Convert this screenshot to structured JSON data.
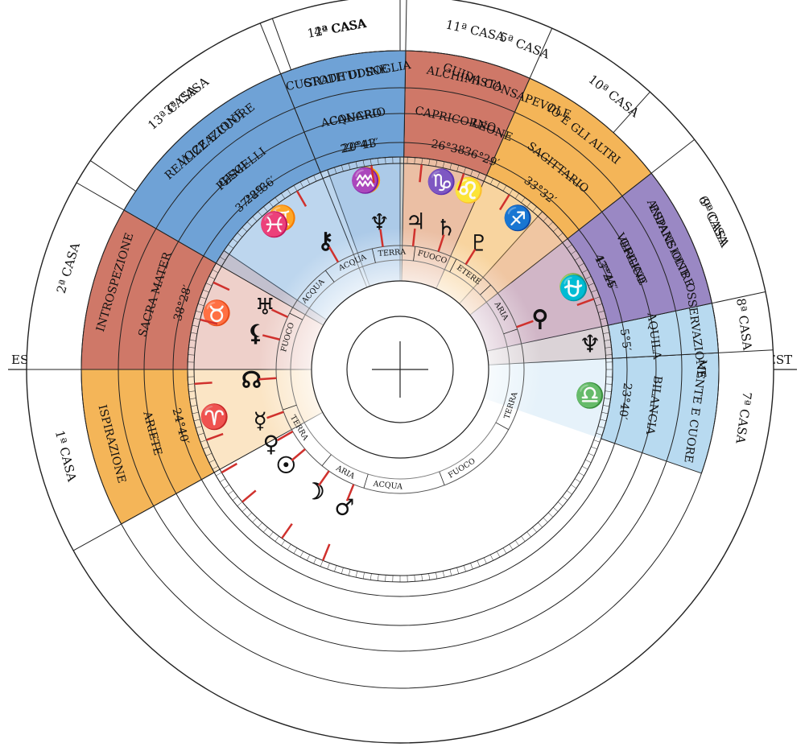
{
  "directions": {
    "east": "EST",
    "west": "OVEST"
  },
  "houses": [
    {
      "label": "1ª CASA",
      "theme": "ISPIRAZIONE",
      "sign": "ARIETE",
      "degree": "24°40′",
      "sign_icon": "aries-icon",
      "glyph": "♈",
      "color": "#f4b558"
    },
    {
      "label": "2ª CASA",
      "theme": "INTROSPEZIONE",
      "sign": "SACRA MATER",
      "degree": "38°28′",
      "sign_icon": "taurus-icon",
      "glyph": "♉",
      "color": "#cf7868"
    },
    {
      "label": "3ª CASA",
      "theme": "VOCE E CUORE",
      "sign": "GEMELLI",
      "degree": "28°36′",
      "sign_icon": "gemini-icon",
      "glyph": "♊",
      "color": "#b8daf0"
    },
    {
      "label": "4ª CASA",
      "theme": "CUSTODE DI SOGLIA",
      "sign": "CANCRO",
      "degree": "20°43′",
      "sign_icon": "cancer-icon",
      "glyph": "♋",
      "color": "#6fa2d6"
    },
    {
      "label": "5ª CASA",
      "theme": "GUIDA CONSAPEVOLE",
      "sign": "LEONE",
      "degree": "36°29′",
      "sign_icon": "leo-icon",
      "glyph": "♌",
      "color": "#f4b558"
    },
    {
      "label": "6ª CASA",
      "theme": "ESPANSIONE",
      "sign": "VERGINE",
      "degree": "43°24′",
      "sign_icon": "virgo-icon",
      "glyph": "♍",
      "color": "#cf7868"
    },
    {
      "label": "7ª CASA",
      "theme": "MENTE E CUORE",
      "sign": "BILANCIA",
      "degree": "23°40′",
      "sign_icon": "libra-icon",
      "glyph": "♎",
      "color": "#b8daf0"
    },
    {
      "label": "8ª CASA",
      "theme": "OSSERVAZIONE",
      "sign": "AQUILA",
      "degree": "5°5′",
      "sign_icon": "eagle-icon",
      "glyph": "♆",
      "color": "#b8daf0"
    },
    {
      "label": "9ª CASA",
      "theme": "ANDARE OLTRE",
      "sign": "OFIUCO",
      "degree": "17°45′",
      "sign_icon": "ophiuchus-icon",
      "glyph": "⛎",
      "color": "#9a88c4"
    },
    {
      "label": "10ª CASA",
      "theme": "IO E GLI ALTRI",
      "sign": "SAGITTARIO",
      "degree": "33°32′",
      "sign_icon": "sagittarius-icon",
      "glyph": "♐",
      "color": "#f4b558"
    },
    {
      "label": "11ª CASA",
      "theme": "ALCHIMISTA",
      "sign": "CAPRICORNO",
      "degree": "26°38′",
      "sign_icon": "capricorn-icon",
      "glyph": "♑",
      "color": "#cf7868"
    },
    {
      "label": "12ª CASA",
      "theme": "GRATITUDINE",
      "sign": "ACQUARIO",
      "degree": "22°41′",
      "sign_icon": "aquarius-icon",
      "glyph": "♒",
      "color": "#6fa2d6"
    },
    {
      "label": "13ª CASA",
      "theme": "REALIZZAZIONE",
      "sign": "PESCI",
      "degree": "37°29′",
      "sign_icon": "pisces-icon",
      "glyph": "♓",
      "color": "#6fa2d6"
    }
  ],
  "elements": [
    "FUOCO",
    "ACQUA",
    "ACQUA",
    "TERRA",
    "FUOCO",
    "ETERE",
    "ARIA",
    "TERRA",
    "FUOCO",
    "ACQUA",
    "ARIA",
    "TERRA"
  ],
  "planets": [
    {
      "name": "neptune-icon",
      "glyph": "♆"
    },
    {
      "name": "jupiter-icon",
      "glyph": "♃"
    },
    {
      "name": "saturn-icon",
      "glyph": "♄"
    },
    {
      "name": "pluto-icon",
      "glyph": "♇"
    },
    {
      "name": "chiron-icon",
      "glyph": "⚷"
    },
    {
      "name": "uranus-icon",
      "glyph": "♅"
    },
    {
      "name": "lilith-icon",
      "glyph": "⚸"
    },
    {
      "name": "node-icon",
      "glyph": "☊"
    },
    {
      "name": "mercury-icon",
      "glyph": "☿"
    },
    {
      "name": "venus-icon",
      "glyph": "♀"
    },
    {
      "name": "sun-icon",
      "glyph": "☉"
    },
    {
      "name": "moon-icon",
      "glyph": "☽"
    },
    {
      "name": "mars-icon",
      "glyph": "♂"
    },
    {
      "name": "vertex-icon",
      "glyph": "⚲"
    }
  ],
  "center_symbol": "earth-cross-icon"
}
